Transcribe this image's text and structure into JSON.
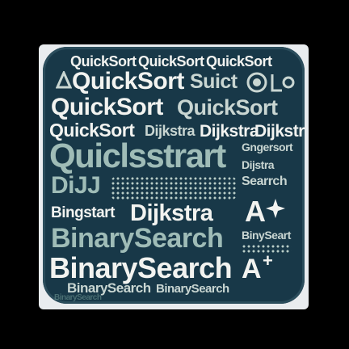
{
  "colors": {
    "background": "#000000",
    "tile": "#183848",
    "text_primary": "#f2f3f0",
    "text_secondary": "#9fbcb7"
  },
  "words": {
    "w1": "QuickSort",
    "w2": "QuickSort",
    "w3": "QuickSort",
    "w4": "QuickSort",
    "w5": "Suict",
    "w6": "QuickSort",
    "w7": "QuickSort",
    "w8": "QuickSort",
    "w9": "Dijkstra",
    "w10": "Dijkstra",
    "w11": "Dijkstra",
    "w12": "Gngersort",
    "w13": "Quiclsstrart",
    "w14": "Dijstra",
    "w15": "DiJJ",
    "w16": "Searrch",
    "w17": "Bingstart",
    "w18": "Dijkstra",
    "w19": "A",
    "w20": "BinarySearch",
    "w21": "BinySeart",
    "w22": "BinarySearch",
    "w23": "BinarySearch",
    "w24": "BinarySearch",
    "w25": "BinarySearch",
    "w26": "A",
    "w27": "+"
  },
  "icons": [
    "triangle-icon",
    "circle-logo-icon",
    "sparkle-icon",
    "plus-icon"
  ]
}
